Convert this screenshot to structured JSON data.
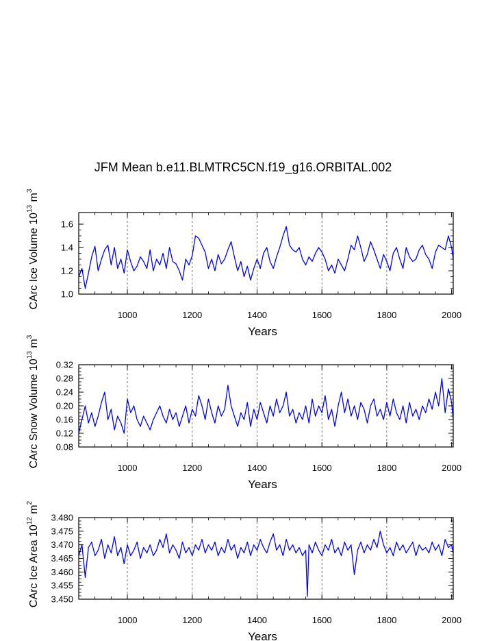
{
  "title": "JFM Mean b.e11.BLMTRC5CN.f19_g16.ORBITAL.002",
  "colors": {
    "series": "#0000ff",
    "axes": "#000000",
    "grid": "#555555"
  },
  "chart_data": [
    {
      "type": "line",
      "title": "JFM Mean b.e11.BLMTRC5CN.f19_g16.ORBITAL.002",
      "xlabel": "Years",
      "ylabel_main": "CArc Ice Volume 10",
      "ylabel_exp": "13",
      "ylabel_unit": " m",
      "ylabel_unit_exp": "3",
      "xlim": [
        850,
        2005
      ],
      "ylim": [
        1.0,
        1.7
      ],
      "xticks": [
        "1000",
        "1200",
        "1400",
        "1600",
        "1800",
        "2000"
      ],
      "xtick_values": [
        1000,
        1200,
        1400,
        1600,
        1800,
        2000
      ],
      "yticks": [
        "1.0",
        "1.2",
        "1.4",
        "1.6"
      ],
      "ytick_values": [
        1.0,
        1.2,
        1.4,
        1.6
      ],
      "grid": "vertical dashed at major x ticks",
      "series": [
        {
          "name": "CArc Ice Volume",
          "x": [
            850,
            860,
            870,
            880,
            890,
            900,
            910,
            920,
            930,
            940,
            950,
            960,
            970,
            980,
            990,
            1000,
            1010,
            1020,
            1030,
            1040,
            1050,
            1060,
            1070,
            1080,
            1090,
            1100,
            1110,
            1120,
            1130,
            1140,
            1150,
            1160,
            1170,
            1180,
            1190,
            1200,
            1210,
            1220,
            1230,
            1240,
            1250,
            1260,
            1270,
            1280,
            1290,
            1300,
            1310,
            1320,
            1330,
            1340,
            1350,
            1360,
            1370,
            1380,
            1390,
            1400,
            1410,
            1420,
            1430,
            1440,
            1450,
            1460,
            1470,
            1480,
            1490,
            1500,
            1510,
            1520,
            1530,
            1540,
            1550,
            1560,
            1570,
            1580,
            1590,
            1600,
            1610,
            1620,
            1630,
            1640,
            1650,
            1660,
            1670,
            1680,
            1690,
            1700,
            1710,
            1720,
            1730,
            1740,
            1750,
            1760,
            1770,
            1780,
            1790,
            1800,
            1810,
            1820,
            1830,
            1840,
            1850,
            1860,
            1870,
            1880,
            1890,
            1900,
            1910,
            1920,
            1930,
            1940,
            1950,
            1960,
            1970,
            1980,
            1990,
            2000,
            2005
          ],
          "y": [
            1.15,
            1.22,
            1.05,
            1.18,
            1.32,
            1.41,
            1.2,
            1.3,
            1.38,
            1.42,
            1.25,
            1.4,
            1.22,
            1.3,
            1.18,
            1.38,
            1.28,
            1.2,
            1.24,
            1.32,
            1.28,
            1.22,
            1.38,
            1.2,
            1.3,
            1.25,
            1.35,
            1.22,
            1.4,
            1.28,
            1.26,
            1.2,
            1.12,
            1.3,
            1.25,
            1.33,
            1.5,
            1.48,
            1.42,
            1.36,
            1.22,
            1.3,
            1.2,
            1.34,
            1.26,
            1.3,
            1.38,
            1.45,
            1.32,
            1.2,
            1.28,
            1.15,
            1.24,
            1.12,
            1.22,
            1.3,
            1.22,
            1.35,
            1.4,
            1.28,
            1.22,
            1.32,
            1.4,
            1.5,
            1.58,
            1.42,
            1.38,
            1.36,
            1.4,
            1.3,
            1.25,
            1.32,
            1.28,
            1.35,
            1.4,
            1.36,
            1.3,
            1.2,
            1.25,
            1.18,
            1.3,
            1.25,
            1.2,
            1.3,
            1.42,
            1.38,
            1.5,
            1.4,
            1.28,
            1.34,
            1.45,
            1.38,
            1.3,
            1.22,
            1.34,
            1.28,
            1.2,
            1.35,
            1.4,
            1.3,
            1.22,
            1.4,
            1.32,
            1.28,
            1.3,
            1.38,
            1.42,
            1.34,
            1.3,
            1.22,
            1.36,
            1.42,
            1.4,
            1.38,
            1.5,
            1.4,
            1.3
          ]
        }
      ]
    },
    {
      "type": "line",
      "xlabel": "Years",
      "ylabel_main": "CArc Snow Volume 10",
      "ylabel_exp": "13",
      "ylabel_unit": " m",
      "ylabel_unit_exp": "3",
      "xlim": [
        850,
        2005
      ],
      "ylim": [
        0.08,
        0.32
      ],
      "xticks": [
        "1000",
        "1200",
        "1400",
        "1600",
        "1800",
        "2000"
      ],
      "xtick_values": [
        1000,
        1200,
        1400,
        1600,
        1800,
        2000
      ],
      "yticks": [
        "0.08",
        "0.12",
        "0.16",
        "0.20",
        "0.24",
        "0.28",
        "0.32"
      ],
      "ytick_values": [
        0.08,
        0.12,
        0.16,
        0.2,
        0.24,
        0.28,
        0.32
      ],
      "grid": "vertical dashed at major x ticks",
      "series": [
        {
          "name": "CArc Snow Volume",
          "x": [
            850,
            860,
            870,
            880,
            890,
            900,
            910,
            920,
            930,
            940,
            950,
            960,
            970,
            980,
            990,
            1000,
            1010,
            1020,
            1030,
            1040,
            1050,
            1060,
            1070,
            1080,
            1090,
            1100,
            1110,
            1120,
            1130,
            1140,
            1150,
            1160,
            1170,
            1180,
            1190,
            1200,
            1210,
            1220,
            1230,
            1240,
            1250,
            1260,
            1270,
            1280,
            1290,
            1300,
            1310,
            1320,
            1330,
            1340,
            1350,
            1360,
            1370,
            1380,
            1390,
            1400,
            1410,
            1420,
            1430,
            1440,
            1450,
            1460,
            1470,
            1480,
            1490,
            1500,
            1510,
            1520,
            1530,
            1540,
            1550,
            1560,
            1570,
            1580,
            1590,
            1600,
            1610,
            1620,
            1630,
            1640,
            1650,
            1660,
            1670,
            1680,
            1690,
            1700,
            1710,
            1720,
            1730,
            1740,
            1750,
            1760,
            1770,
            1780,
            1790,
            1800,
            1810,
            1820,
            1830,
            1840,
            1850,
            1860,
            1870,
            1880,
            1890,
            1900,
            1910,
            1920,
            1930,
            1940,
            1950,
            1960,
            1970,
            1980,
            1990,
            2000,
            2005
          ],
          "y": [
            0.12,
            0.16,
            0.2,
            0.15,
            0.18,
            0.14,
            0.17,
            0.21,
            0.24,
            0.16,
            0.19,
            0.13,
            0.17,
            0.15,
            0.12,
            0.22,
            0.18,
            0.2,
            0.16,
            0.14,
            0.17,
            0.15,
            0.13,
            0.16,
            0.18,
            0.2,
            0.17,
            0.15,
            0.19,
            0.16,
            0.18,
            0.14,
            0.17,
            0.2,
            0.15,
            0.19,
            0.17,
            0.23,
            0.2,
            0.16,
            0.22,
            0.18,
            0.15,
            0.2,
            0.17,
            0.19,
            0.26,
            0.2,
            0.17,
            0.14,
            0.18,
            0.16,
            0.21,
            0.14,
            0.19,
            0.16,
            0.21,
            0.18,
            0.15,
            0.2,
            0.17,
            0.22,
            0.18,
            0.2,
            0.24,
            0.17,
            0.19,
            0.15,
            0.18,
            0.16,
            0.2,
            0.15,
            0.22,
            0.17,
            0.2,
            0.18,
            0.23,
            0.16,
            0.19,
            0.14,
            0.2,
            0.24,
            0.18,
            0.22,
            0.17,
            0.2,
            0.16,
            0.21,
            0.19,
            0.15,
            0.2,
            0.22,
            0.17,
            0.19,
            0.16,
            0.21,
            0.17,
            0.22,
            0.18,
            0.16,
            0.2,
            0.15,
            0.21,
            0.17,
            0.19,
            0.16,
            0.2,
            0.18,
            0.22,
            0.19,
            0.24,
            0.2,
            0.28,
            0.18,
            0.25,
            0.21,
            0.16
          ]
        }
      ]
    },
    {
      "type": "line",
      "xlabel": "Years",
      "ylabel_main": "CArc Ice Area 10",
      "ylabel_exp": "12",
      "ylabel_unit": " m",
      "ylabel_unit_exp": "2",
      "xlim": [
        850,
        2005
      ],
      "ylim": [
        3.45,
        3.48
      ],
      "xticks": [
        "1000",
        "1200",
        "1400",
        "1600",
        "1800",
        "2000"
      ],
      "xtick_values": [
        1000,
        1200,
        1400,
        1600,
        1800,
        2000
      ],
      "yticks": [
        "3.450",
        "3.455",
        "3.460",
        "3.465",
        "3.470",
        "3.475",
        "3.480"
      ],
      "ytick_values": [
        3.45,
        3.455,
        3.46,
        3.465,
        3.47,
        3.475,
        3.48
      ],
      "grid": "vertical dashed at major x ticks",
      "series": [
        {
          "name": "CArc Ice Area",
          "x": [
            850,
            860,
            870,
            880,
            890,
            900,
            910,
            920,
            930,
            940,
            950,
            960,
            970,
            980,
            990,
            1000,
            1010,
            1020,
            1030,
            1040,
            1050,
            1060,
            1070,
            1080,
            1090,
            1100,
            1110,
            1120,
            1130,
            1140,
            1150,
            1160,
            1170,
            1180,
            1190,
            1200,
            1210,
            1220,
            1230,
            1240,
            1250,
            1260,
            1270,
            1280,
            1290,
            1300,
            1310,
            1320,
            1330,
            1340,
            1350,
            1360,
            1370,
            1380,
            1390,
            1400,
            1410,
            1420,
            1430,
            1440,
            1450,
            1460,
            1470,
            1480,
            1490,
            1500,
            1510,
            1520,
            1530,
            1540,
            1550,
            1555,
            1560,
            1570,
            1580,
            1590,
            1600,
            1610,
            1620,
            1630,
            1640,
            1650,
            1660,
            1670,
            1680,
            1690,
            1700,
            1710,
            1720,
            1730,
            1740,
            1750,
            1760,
            1770,
            1780,
            1790,
            1800,
            1810,
            1820,
            1830,
            1840,
            1850,
            1860,
            1870,
            1880,
            1890,
            1900,
            1910,
            1920,
            1930,
            1940,
            1950,
            1960,
            1970,
            1980,
            1990,
            2000,
            2005
          ],
          "y": [
            3.466,
            3.47,
            3.458,
            3.469,
            3.471,
            3.466,
            3.468,
            3.472,
            3.465,
            3.47,
            3.467,
            3.473,
            3.466,
            3.469,
            3.463,
            3.47,
            3.466,
            3.468,
            3.471,
            3.465,
            3.469,
            3.467,
            3.47,
            3.466,
            3.468,
            3.472,
            3.469,
            3.474,
            3.467,
            3.47,
            3.468,
            3.465,
            3.471,
            3.467,
            3.469,
            3.466,
            3.47,
            3.468,
            3.472,
            3.467,
            3.47,
            3.468,
            3.471,
            3.466,
            3.469,
            3.467,
            3.472,
            3.468,
            3.47,
            3.465,
            3.469,
            3.467,
            3.471,
            3.466,
            3.47,
            3.468,
            3.472,
            3.469,
            3.467,
            3.471,
            3.474,
            3.468,
            3.47,
            3.466,
            3.472,
            3.468,
            3.47,
            3.467,
            3.469,
            3.466,
            3.468,
            3.451,
            3.47,
            3.467,
            3.471,
            3.468,
            3.466,
            3.47,
            3.468,
            3.472,
            3.467,
            3.469,
            3.466,
            3.471,
            3.468,
            3.47,
            3.459,
            3.468,
            3.471,
            3.467,
            3.47,
            3.468,
            3.472,
            3.469,
            3.475,
            3.47,
            3.467,
            3.469,
            3.466,
            3.471,
            3.468,
            3.47,
            3.467,
            3.469,
            3.471,
            3.466,
            3.47,
            3.468,
            3.469,
            3.467,
            3.471,
            3.468,
            3.47,
            3.466,
            3.472,
            3.469,
            3.47,
            3.467
          ]
        }
      ]
    }
  ]
}
